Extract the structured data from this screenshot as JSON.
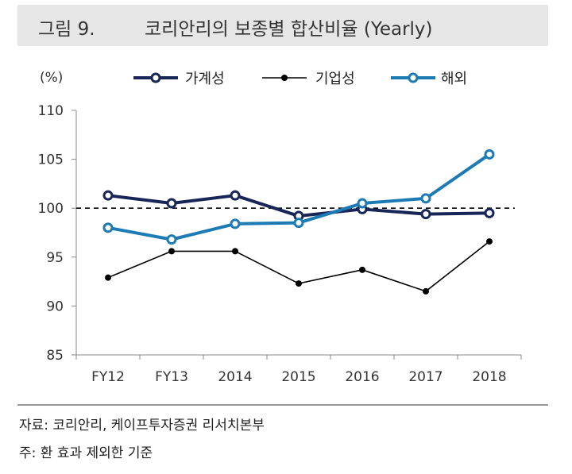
{
  "header": {
    "fig_num": "그림 9.",
    "title": "코리안리의 보종별 합산비율 (Yearly)"
  },
  "unit_label": "(%)",
  "source": "자료: 코리안리, 케이프투자증권 리서치본부",
  "note": "주: 환 효과 제외한 기준",
  "colors": {
    "household": "#172557",
    "corporate": "#000000",
    "overseas": "#1c7bb5"
  },
  "chart_data": {
    "type": "line",
    "categories": [
      "FY12",
      "FY13",
      "2014",
      "2015",
      "2016",
      "2017",
      "2018"
    ],
    "ylim": [
      85,
      110
    ],
    "yticks": [
      85,
      90,
      95,
      100,
      105,
      110
    ],
    "reference_line": 100,
    "legend_position": "top",
    "series": [
      {
        "name": "가계성",
        "values": [
          101.3,
          100.5,
          101.3,
          99.2,
          99.9,
          99.4,
          99.5
        ]
      },
      {
        "name": "기업성",
        "values": [
          92.9,
          95.6,
          95.6,
          92.3,
          93.7,
          91.5,
          96.6
        ]
      },
      {
        "name": "해외",
        "values": [
          98.0,
          96.8,
          98.4,
          98.5,
          100.5,
          101.0,
          105.5
        ]
      }
    ]
  }
}
